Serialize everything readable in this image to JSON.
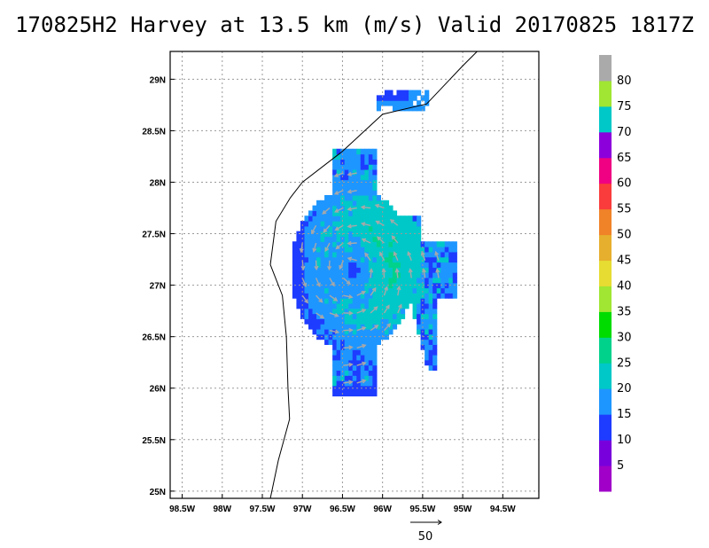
{
  "chart_data": {
    "type": "heatmap",
    "title": "170825H2 Harvey at 13.5 km (m/s) Valid 20170825 1817Z",
    "x_ticks": [
      {
        "value": -98.5,
        "label": "98.5W"
      },
      {
        "value": -98.0,
        "label": "98W"
      },
      {
        "value": -97.5,
        "label": "97.5W"
      },
      {
        "value": -97.0,
        "label": "97W"
      },
      {
        "value": -96.5,
        "label": "96.5W"
      },
      {
        "value": -96.0,
        "label": "96W"
      },
      {
        "value": -95.5,
        "label": "95.5W"
      },
      {
        "value": -95.0,
        "label": "95W"
      },
      {
        "value": -94.5,
        "label": "94.5W"
      }
    ],
    "y_ticks": [
      {
        "value": 25.0,
        "label": "25N"
      },
      {
        "value": 25.5,
        "label": "25.5N"
      },
      {
        "value": 26.0,
        "label": "26N"
      },
      {
        "value": 26.5,
        "label": "26.5N"
      },
      {
        "value": 27.0,
        "label": "27N"
      },
      {
        "value": 27.5,
        "label": "27.5N"
      },
      {
        "value": 28.0,
        "label": "28N"
      },
      {
        "value": 28.5,
        "label": "28.5N"
      },
      {
        "value": 29.0,
        "label": "29N"
      }
    ],
    "xlim": [
      -98.65,
      -94.05
    ],
    "ylim": [
      24.93,
      29.27
    ],
    "grid": true,
    "colorbar": {
      "levels": [
        "5",
        "10",
        "15",
        "20",
        "25",
        "30",
        "35",
        "40",
        "45",
        "50",
        "55",
        "60",
        "65",
        "70",
        "75",
        "80"
      ],
      "colors": [
        "#a000c8",
        "#7800dc",
        "#1e3cff",
        "#1e96ff",
        "#00c8c8",
        "#00d28c",
        "#00dc00",
        "#a0e632",
        "#e6dc32",
        "#e6af2d",
        "#f08228",
        "#fa3c3c",
        "#f00082",
        "#8c00dc",
        "#00c8c8",
        "#a0e632",
        "#aaaaaa"
      ]
    },
    "coastline": [
      [
        -94.82,
        29.27
      ],
      [
        -95.0,
        29.13
      ],
      [
        -95.45,
        28.76
      ],
      [
        -96.0,
        28.66
      ],
      [
        -96.5,
        28.3
      ],
      [
        -97.0,
        28.0
      ],
      [
        -97.15,
        27.85
      ],
      [
        -97.33,
        27.62
      ],
      [
        -97.4,
        27.2
      ],
      [
        -97.25,
        26.9
      ],
      [
        -97.2,
        26.5
      ],
      [
        -97.18,
        26.0
      ],
      [
        -97.16,
        25.7
      ],
      [
        -97.3,
        25.3
      ],
      [
        -97.4,
        24.93
      ]
    ],
    "center": [
      -96.37,
      27.15
    ],
    "wind_field": {
      "description": "Annular wind field around the storm center, strongest (25-30 m/s) to the east/northeast",
      "max_speed": 32,
      "radius_deg": 0.75
    },
    "reference_vector": {
      "label": "50"
    }
  }
}
